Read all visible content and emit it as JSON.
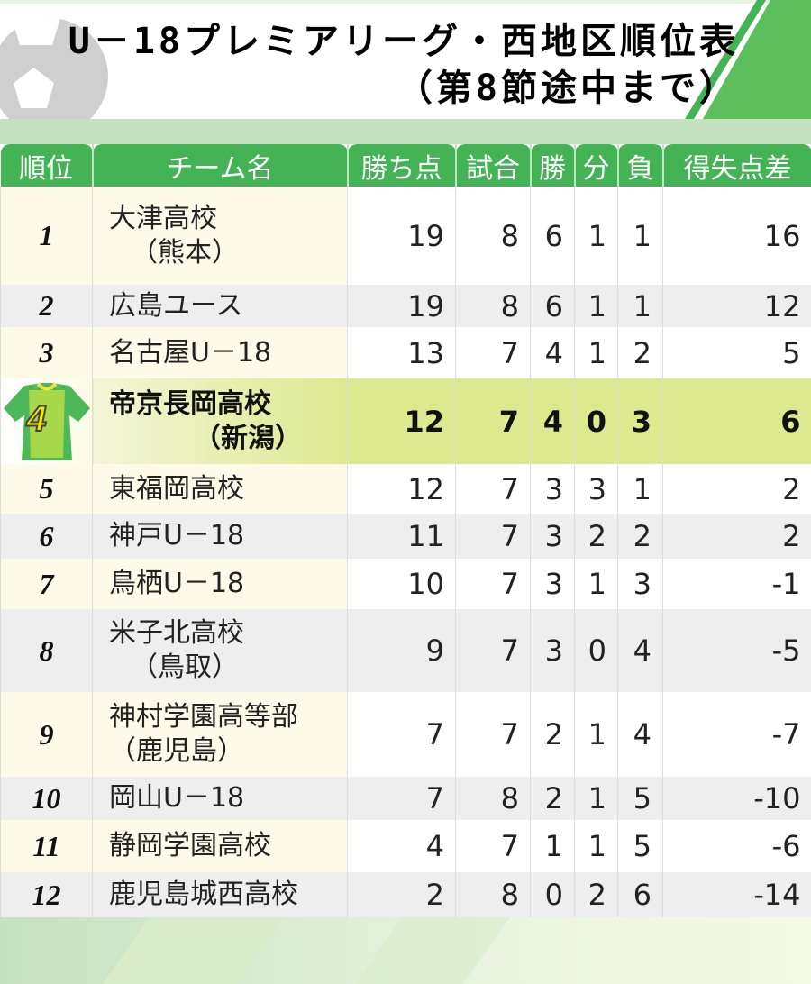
{
  "title": {
    "line1": "U－18プレミアリーグ・西地区順位表",
    "line2": "（第8節途中まで）"
  },
  "colors": {
    "header": "#43b356",
    "highlight": "#dce98f",
    "band": "#c5e2c0"
  },
  "columns": [
    "順位",
    "チーム名",
    "勝ち点",
    "試合",
    "勝",
    "分",
    "負",
    "得失点差"
  ],
  "rows": [
    {
      "rank": "1",
      "name": "大津高校",
      "sub": "（熊本）",
      "pts": "19",
      "gp": "8",
      "w": "6",
      "d": "1",
      "l": "1",
      "gd": "16"
    },
    {
      "rank": "2",
      "name": "広島ユース",
      "pts": "19",
      "gp": "8",
      "w": "6",
      "d": "1",
      "l": "1",
      "gd": "12"
    },
    {
      "rank": "3",
      "name": "名古屋U－18",
      "pts": "13",
      "gp": "7",
      "w": "4",
      "d": "1",
      "l": "2",
      "gd": "5"
    },
    {
      "rank": "4",
      "name": "帝京長岡高校",
      "sub": "（新潟）",
      "pts": "12",
      "gp": "7",
      "w": "4",
      "d": "0",
      "l": "3",
      "gd": "6",
      "icon": "jersey-icon"
    },
    {
      "rank": "5",
      "name": "東福岡高校",
      "pts": "12",
      "gp": "7",
      "w": "3",
      "d": "3",
      "l": "1",
      "gd": "2"
    },
    {
      "rank": "6",
      "name": "神戸U－18",
      "pts": "11",
      "gp": "7",
      "w": "3",
      "d": "2",
      "l": "2",
      "gd": "2"
    },
    {
      "rank": "7",
      "name": "鳥栖U－18",
      "pts": "10",
      "gp": "7",
      "w": "3",
      "d": "1",
      "l": "3",
      "gd": "-1"
    },
    {
      "rank": "8",
      "name": "米子北高校",
      "sub": "（鳥取）",
      "pts": "9",
      "gp": "7",
      "w": "3",
      "d": "0",
      "l": "4",
      "gd": "-5"
    },
    {
      "rank": "9",
      "name": "神村学園高等部",
      "sub": "（鹿児島）",
      "pts": "7",
      "gp": "7",
      "w": "2",
      "d": "1",
      "l": "4",
      "gd": "-7"
    },
    {
      "rank": "10",
      "name": "岡山U－18",
      "pts": "7",
      "gp": "8",
      "w": "2",
      "d": "1",
      "l": "5",
      "gd": "-10"
    },
    {
      "rank": "11",
      "name": "静岡学園高校",
      "pts": "4",
      "gp": "7",
      "w": "1",
      "d": "1",
      "l": "5",
      "gd": "-6"
    },
    {
      "rank": "12",
      "name": "鹿児島城西高校",
      "pts": "2",
      "gp": "8",
      "w": "0",
      "d": "2",
      "l": "6",
      "gd": "-14"
    }
  ]
}
